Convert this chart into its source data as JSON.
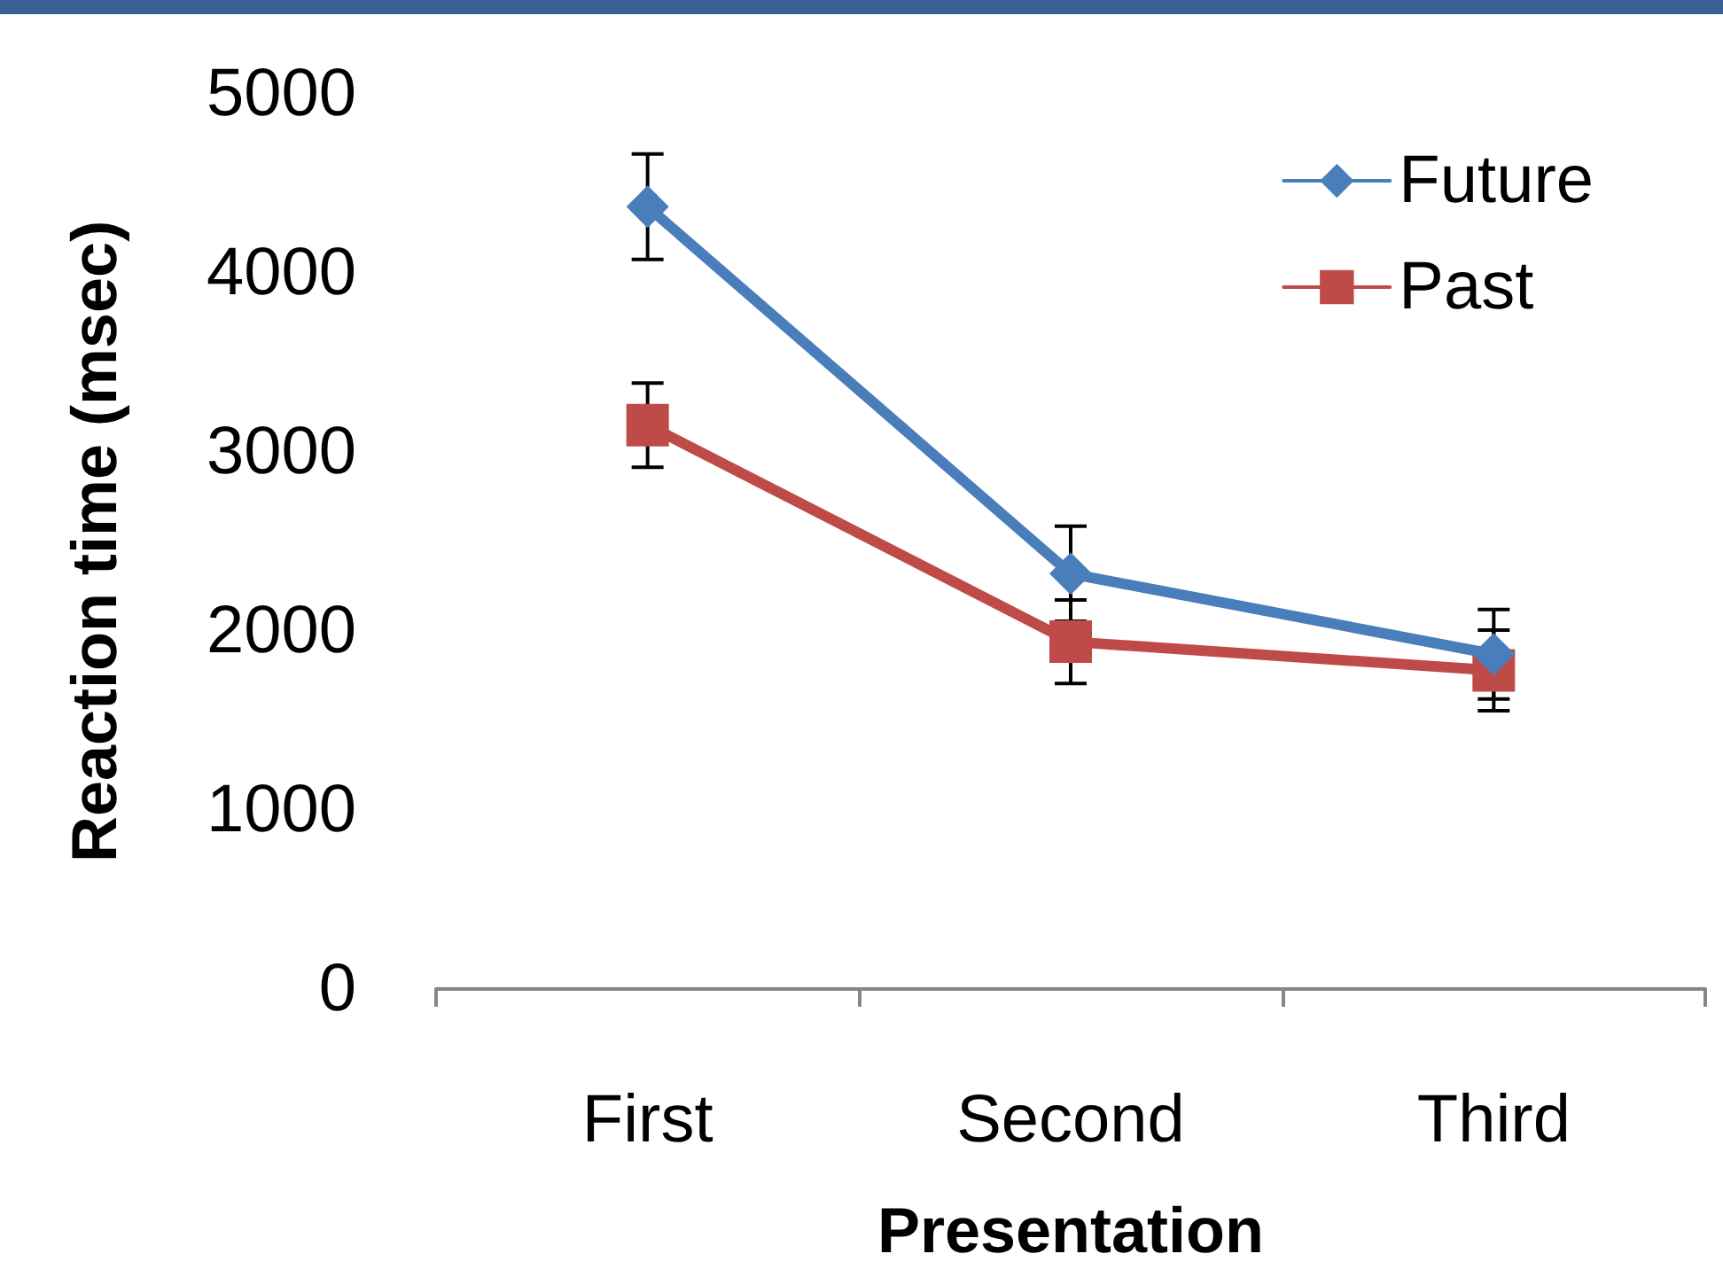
{
  "chart_data": {
    "type": "line",
    "xlabel": "Presentation",
    "ylabel": "Reaction time (msec)",
    "categories": [
      "First",
      "Second",
      "Third"
    ],
    "series": [
      {
        "name": "Future",
        "color": "#4a7ebb",
        "marker": "diamond",
        "values": [
          4370,
          2320,
          1870
        ],
        "errors": [
          295,
          265,
          250
        ]
      },
      {
        "name": "Past",
        "color": "#be4b48",
        "marker": "square",
        "values": [
          3150,
          1940,
          1780
        ],
        "errors": [
          235,
          233,
          225
        ]
      }
    ],
    "ylim": [
      0,
      5000
    ],
    "yticks": [
      0,
      1000,
      2000,
      3000,
      4000,
      5000
    ],
    "grid": false,
    "legend": "top right",
    "line_style": "solid"
  }
}
